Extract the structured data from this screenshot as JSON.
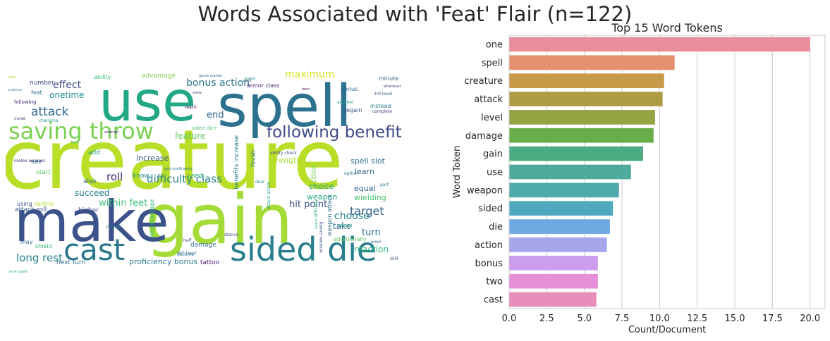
{
  "suptitle": "Words Associated with 'Feat' Flair (n=122)",
  "chart_data": [
    {
      "type": "wordcloud",
      "words": [
        {
          "text": "creature",
          "weight": 100,
          "color": "#b9de28"
        },
        {
          "text": "gain",
          "weight": 82,
          "color": "#a5db36"
        },
        {
          "text": "make",
          "weight": 66,
          "color": "#3b528b"
        },
        {
          "text": "spell",
          "weight": 64,
          "color": "#2c728e"
        },
        {
          "text": "use",
          "weight": 62,
          "color": "#22a884"
        },
        {
          "text": "sided die",
          "weight": 44,
          "color": "#287d8e"
        },
        {
          "text": "cast",
          "weight": 40,
          "color": "#2a788e"
        },
        {
          "text": "saving throw",
          "weight": 32,
          "color": "#7ad151"
        },
        {
          "text": "following benefit",
          "weight": 24,
          "color": "#3e4a89"
        },
        {
          "text": "attack",
          "weight": 16,
          "color": "#31688e"
        },
        {
          "text": "target",
          "weight": 15,
          "color": "#33638d"
        },
        {
          "text": "long rest",
          "weight": 14,
          "color": "#26828e"
        },
        {
          "text": "difficulty class",
          "weight": 14,
          "color": "#25838e"
        },
        {
          "text": "roll",
          "weight": 14,
          "color": "#482475"
        },
        {
          "text": "choose",
          "weight": 13,
          "color": "#27808e"
        },
        {
          "text": "effect",
          "weight": 13,
          "color": "#3e4989"
        },
        {
          "text": "bonus action",
          "weight": 13,
          "color": "#2a788e"
        },
        {
          "text": "maximum",
          "weight": 13,
          "color": "#d5e21a"
        },
        {
          "text": "end",
          "weight": 12,
          "color": "#31688e"
        },
        {
          "text": "hit point",
          "weight": 12,
          "color": "#3b528b"
        },
        {
          "text": "turn",
          "weight": 12,
          "color": "#2d708e"
        },
        {
          "text": "within feet",
          "weight": 12,
          "color": "#3dbc74"
        },
        {
          "text": "succeed",
          "weight": 11,
          "color": "#26828e"
        },
        {
          "text": "onetime",
          "weight": 11,
          "color": "#23898e"
        },
        {
          "text": "feature",
          "weight": 11,
          "color": "#5ec962"
        },
        {
          "text": "take",
          "weight": 11,
          "color": "#2c728e"
        },
        {
          "text": "reaction",
          "weight": 11,
          "color": "#35b779"
        },
        {
          "text": "learn",
          "weight": 10,
          "color": "#31688e"
        },
        {
          "text": "equal",
          "weight": 10,
          "color": "#33638d"
        },
        {
          "text": "wielding",
          "weight": 10,
          "color": "#4ac16d"
        },
        {
          "text": "choice",
          "weight": 10,
          "color": "#1f9e89"
        },
        {
          "text": "weapon",
          "weight": 10,
          "color": "#22a884"
        },
        {
          "text": "spell slot",
          "weight": 10,
          "color": "#2c728e"
        },
        {
          "text": "increase",
          "weight": 10,
          "color": "#39568c"
        },
        {
          "text": "strength",
          "weight": 10,
          "color": "#addc30"
        },
        {
          "text": "proficiency bonus",
          "weight": 10,
          "color": "#2a788e"
        },
        {
          "text": "next turn",
          "weight": 9,
          "color": "#31688e"
        },
        {
          "text": "tattoo",
          "weight": 9,
          "color": "#481a6c"
        },
        {
          "text": "damage",
          "weight": 9,
          "color": "#2d708e"
        },
        {
          "text": "attack roll",
          "weight": 9,
          "color": "#39568c"
        },
        {
          "text": "start",
          "weight": 9,
          "color": "#5ec962"
        },
        {
          "text": "used",
          "weight": 9,
          "color": "#22a884"
        },
        {
          "text": "know",
          "weight": 9,
          "color": "#21918c"
        },
        {
          "text": "add",
          "weight": 9,
          "color": "#1f9e89"
        },
        {
          "text": "higher",
          "weight": 9,
          "color": "#3e4989"
        },
        {
          "text": "number",
          "weight": 9,
          "color": "#3e4a89"
        },
        {
          "text": "also",
          "weight": 9,
          "color": "#31688e"
        },
        {
          "text": "see",
          "weight": 9,
          "color": "#2a788e"
        },
        {
          "text": "ability",
          "weight": 8,
          "color": "#3dbc74"
        },
        {
          "text": "advantage",
          "weight": 9,
          "color": "#7ad151"
        },
        {
          "text": "armor class",
          "weight": 8,
          "color": "#482475"
        },
        {
          "text": "minute",
          "weight": 8,
          "color": "#33638d"
        },
        {
          "text": "instead",
          "weight": 8,
          "color": "#2a788e"
        },
        {
          "text": "bonus",
          "weight": 8,
          "color": "#31688e"
        },
        {
          "text": "regain",
          "weight": 8,
          "color": "#3b528b"
        },
        {
          "text": "additionally",
          "weight": 8,
          "color": "#5ec962"
        },
        {
          "text": "shield",
          "weight": 8,
          "color": "#3dbc74"
        },
        {
          "text": "may",
          "weight": 8,
          "color": "#31688e"
        },
        {
          "text": "using",
          "weight": 8,
          "color": "#3e4989"
        },
        {
          "text": "cantrip",
          "weight": 8,
          "color": "#b5de2b"
        },
        {
          "text": "feat",
          "weight": 8,
          "color": "#2c728e"
        },
        {
          "text": "following",
          "weight": 7,
          "color": "#482878"
        },
        {
          "text": "sided dice",
          "weight": 7,
          "color": "#44bf70"
        },
        {
          "text": "curse",
          "weight": 6,
          "color": "#414487"
        },
        {
          "text": "charisma",
          "weight": 6,
          "color": "#1f968b"
        },
        {
          "text": "ability check",
          "weight": 6,
          "color": "#3e4989"
        },
        {
          "text": "option",
          "weight": 6,
          "color": "#2a788e"
        },
        {
          "text": "cannot",
          "weight": 6,
          "color": "#20a386"
        },
        {
          "text": "skill",
          "weight": 6,
          "color": "#3b528b"
        },
        {
          "text": "even",
          "weight": 6,
          "color": "#38598c"
        },
        {
          "text": "part",
          "weight": 6,
          "color": "#2c728e"
        },
        {
          "text": "reach",
          "weight": 6,
          "color": "#440154"
        },
        {
          "text": "another",
          "weight": 6,
          "color": "#1f9e89"
        },
        {
          "text": "complete",
          "weight": 6,
          "color": "#433e85"
        },
        {
          "text": "3rd level",
          "weight": 6,
          "color": "#3b528b"
        },
        {
          "text": "whenever",
          "weight": 5,
          "color": "#46337f"
        },
        {
          "text": "allow",
          "weight": 5,
          "color": "#3e4989"
        },
        {
          "text": "hour",
          "weight": 5,
          "color": "#440154"
        },
        {
          "text": "short",
          "weight": 5,
          "color": "#3e4989"
        },
        {
          "text": "player",
          "weight": 5,
          "color": "#21918c"
        },
        {
          "text": "game master",
          "weight": 5,
          "color": "#2c728e"
        },
        {
          "text": "melee weapon",
          "weight": 6,
          "color": "#46337f"
        },
        {
          "text": "half",
          "weight": 6,
          "color": "#3e4989"
        },
        {
          "text": "become",
          "weight": 6,
          "color": "#31688e"
        },
        {
          "text": "5th level",
          "weight": 6,
          "color": "#2c728e"
        },
        {
          "text": "stance",
          "weight": 6,
          "color": "#414487"
        },
        {
          "text": "deal",
          "weight": 6,
          "color": "#25838e"
        },
        {
          "text": "change",
          "weight": 6,
          "color": "#2a788e"
        },
        {
          "text": "able",
          "weight": 5,
          "color": "#addc30"
        },
        {
          "text": "proficient",
          "weight": 4,
          "color": "#2c728e"
        },
        {
          "text": "attempt",
          "weight": 5,
          "color": "#482878"
        },
        {
          "text": "gain proficiency",
          "weight": 5,
          "color": "#2a788e"
        },
        {
          "text": "level spell",
          "weight": 5,
          "color": "#35b779"
        },
        {
          "text": "benefits increase",
          "weight": 9,
          "color": "#25838e"
        },
        {
          "text": "finish",
          "weight": 9,
          "color": "#2c728e"
        },
        {
          "text": "action",
          "weight": 10,
          "color": "#7ad151"
        },
        {
          "text": "disadvantage",
          "weight": 8,
          "color": "#35b779"
        },
        {
          "text": "weapon attack",
          "weight": 8,
          "color": "#31688e"
        },
        {
          "text": "save difficulty",
          "weight": 6,
          "color": "#35b779"
        },
        {
          "text": "attack action",
          "weight": 6,
          "color": "#1f9e89"
        },
        {
          "text": "wisdom saving",
          "weight": 6,
          "color": "#3b528b"
        }
      ]
    },
    {
      "type": "bar",
      "orientation": "horizontal",
      "title": "Top 15 Word Tokens",
      "xlabel": "Count/Document",
      "ylabel": "Word Token",
      "xlim": [
        0,
        21
      ],
      "xticks": [
        "0.0",
        "2.5",
        "5.0",
        "7.5",
        "10.0",
        "12.5",
        "15.0",
        "17.5",
        "20.0"
      ],
      "grid": true,
      "categories": [
        "one",
        "spell",
        "creature",
        "attack",
        "level",
        "damage",
        "gain",
        "use",
        "weapon",
        "sided",
        "die",
        "action",
        "bonus",
        "two",
        "cast"
      ],
      "values": [
        20.0,
        11.0,
        10.3,
        10.2,
        9.7,
        9.6,
        8.9,
        8.1,
        7.3,
        6.9,
        6.7,
        6.5,
        5.9,
        5.9,
        5.8
      ],
      "colors": [
        "#ea8d9a",
        "#e5906f",
        "#c89a48",
        "#b09b45",
        "#94a443",
        "#67ae4a",
        "#4bab82",
        "#4daa9c",
        "#4eaaad",
        "#4ea9bf",
        "#6fa8e0",
        "#a8a6eb",
        "#cc9ded",
        "#e68fd8",
        "#e88eba"
      ]
    }
  ]
}
